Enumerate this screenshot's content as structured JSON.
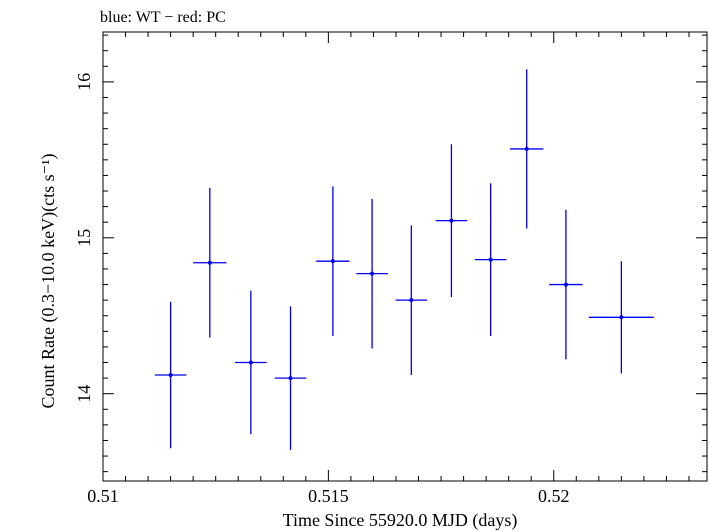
{
  "chart_data": {
    "type": "scatter",
    "title": "blue: WT − red: PC",
    "xlabel": "Time Since 55920.0 MJD (days)",
    "ylabel": "Count Rate (0.3−10.0 keV)(cts s⁻¹)",
    "xlim": [
      0.51,
      0.5234
    ],
    "ylim": [
      13.44,
      16.32
    ],
    "x_ticks": [
      {
        "value": 0.51,
        "label": "0.51"
      },
      {
        "value": 0.515,
        "label": "0.515"
      },
      {
        "value": 0.52,
        "label": "0.52"
      }
    ],
    "y_ticks": [
      {
        "value": 14,
        "label": "14"
      },
      {
        "value": 15,
        "label": "15"
      },
      {
        "value": 16,
        "label": "16"
      }
    ],
    "grid": false,
    "series": [
      {
        "name": "WT",
        "color": "#0000ee",
        "points": [
          {
            "x": 0.5115,
            "xerr": 0.00035,
            "y": 14.12,
            "yerr": 0.47
          },
          {
            "x": 0.51237,
            "xerr": 0.00037,
            "y": 14.84,
            "yerr": 0.48
          },
          {
            "x": 0.51328,
            "xerr": 0.00035,
            "y": 14.2,
            "yerr": 0.46
          },
          {
            "x": 0.51416,
            "xerr": 0.00035,
            "y": 14.1,
            "yerr": 0.46
          },
          {
            "x": 0.5151,
            "xerr": 0.00037,
            "y": 14.85,
            "yerr": 0.48
          },
          {
            "x": 0.51597,
            "xerr": 0.00035,
            "y": 14.77,
            "yerr": 0.48
          },
          {
            "x": 0.51684,
            "xerr": 0.00035,
            "y": 14.6,
            "yerr": 0.48
          },
          {
            "x": 0.51773,
            "xerr": 0.00035,
            "y": 15.11,
            "yerr": 0.49
          },
          {
            "x": 0.5186,
            "xerr": 0.00035,
            "y": 14.86,
            "yerr": 0.49
          },
          {
            "x": 0.5194,
            "xerr": 0.00037,
            "y": 15.57,
            "yerr": 0.51
          },
          {
            "x": 0.52027,
            "xerr": 0.00037,
            "y": 14.7,
            "yerr": 0.48
          },
          {
            "x": 0.5215,
            "xerr": 0.00072,
            "y": 14.49,
            "yerr": 0.36
          }
        ]
      }
    ]
  }
}
